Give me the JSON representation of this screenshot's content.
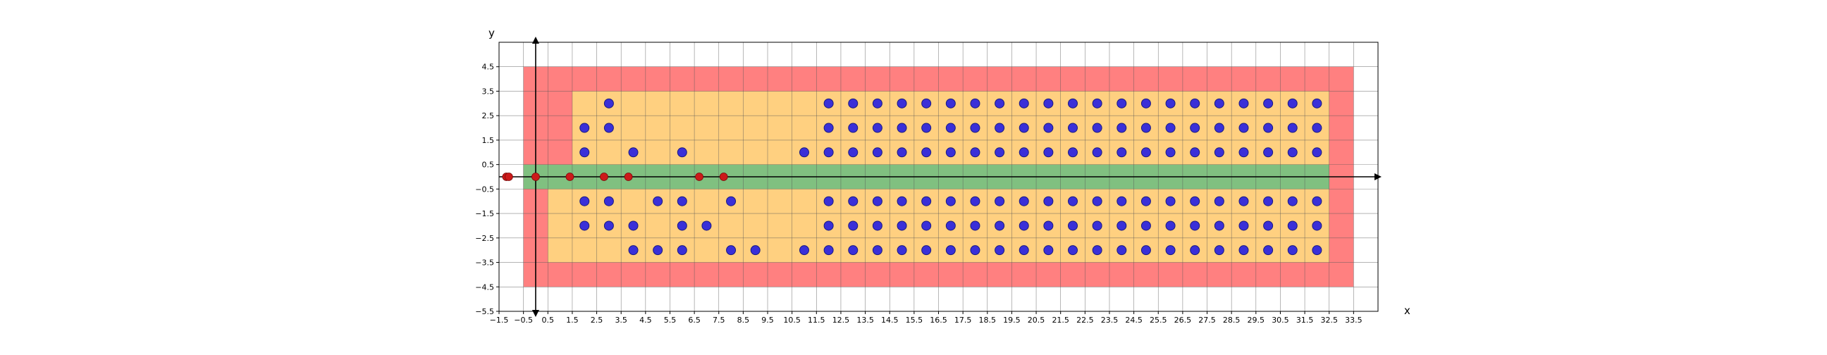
{
  "chart_data": {
    "type": "scatter",
    "xlabel": "x",
    "ylabel": "y",
    "xlim": [
      -1.5,
      34.5
    ],
    "ylim": [
      -5.5,
      5.5
    ],
    "grid": true,
    "x_ticks": [
      "−1.5",
      "−0.5",
      "0.5",
      "1.5",
      "2.5",
      "3.5",
      "4.5",
      "5.5",
      "6.5",
      "7.5",
      "8.5",
      "9.5",
      "10.5",
      "11.5",
      "12.5",
      "13.5",
      "14.5",
      "15.5",
      "16.5",
      "17.5",
      "18.5",
      "19.5",
      "20.5",
      "21.5",
      "22.5",
      "23.5",
      "24.5",
      "25.5",
      "26.5",
      "27.5",
      "28.5",
      "29.5",
      "30.5",
      "31.5",
      "32.5",
      "33.5"
    ],
    "y_ticks": [
      "4.5",
      "3.5",
      "2.5",
      "1.5",
      "0.5",
      "−0.5",
      "−1.5",
      "−2.5",
      "−3.5",
      "−4.5",
      "−5.5"
    ],
    "colors": {
      "outer_region": "#ff8080",
      "inner_region": "#ffd080",
      "center_band": "#80c080",
      "grid": "#555555",
      "blue_point_fill": "#3a2fd8",
      "blue_point_edge": "#1a1a80",
      "red_point": "#cc1a1a"
    },
    "regions": [
      {
        "name": "outer",
        "x": [
          -0.5,
          33.5
        ],
        "y": [
          -4.5,
          4.5
        ]
      },
      {
        "name": "inner-top",
        "x": [
          1.5,
          32.5
        ],
        "y": [
          0.5,
          3.5
        ]
      },
      {
        "name": "inner-bottom",
        "x": [
          0.5,
          32.5
        ],
        "y": [
          -3.5,
          -0.5
        ]
      },
      {
        "name": "center-band",
        "x": [
          -0.5,
          32.5
        ],
        "y": [
          -0.5,
          0.5
        ]
      }
    ],
    "series": [
      {
        "points": [
          [
            3,
            3
          ],
          [
            12,
            3
          ],
          [
            13,
            3
          ],
          [
            14,
            3
          ],
          [
            15,
            3
          ],
          [
            16,
            3
          ],
          [
            17,
            3
          ],
          [
            18,
            3
          ],
          [
            19,
            3
          ],
          [
            20,
            3
          ],
          [
            21,
            3
          ],
          [
            22,
            3
          ],
          [
            23,
            3
          ],
          [
            24,
            3
          ],
          [
            25,
            3
          ],
          [
            26,
            3
          ],
          [
            27,
            3
          ],
          [
            28,
            3
          ],
          [
            29,
            3
          ],
          [
            30,
            3
          ],
          [
            31,
            3
          ],
          [
            32,
            3
          ],
          [
            2,
            2
          ],
          [
            3,
            2
          ],
          [
            12,
            2
          ],
          [
            13,
            2
          ],
          [
            14,
            2
          ],
          [
            15,
            2
          ],
          [
            16,
            2
          ],
          [
            17,
            2
          ],
          [
            18,
            2
          ],
          [
            19,
            2
          ],
          [
            20,
            2
          ],
          [
            21,
            2
          ],
          [
            22,
            2
          ],
          [
            23,
            2
          ],
          [
            24,
            2
          ],
          [
            25,
            2
          ],
          [
            26,
            2
          ],
          [
            27,
            2
          ],
          [
            28,
            2
          ],
          [
            29,
            2
          ],
          [
            30,
            2
          ],
          [
            31,
            2
          ],
          [
            32,
            2
          ],
          [
            2,
            1
          ],
          [
            4,
            1
          ],
          [
            6,
            1
          ],
          [
            11,
            1
          ],
          [
            12,
            1
          ],
          [
            13,
            1
          ],
          [
            14,
            1
          ],
          [
            15,
            1
          ],
          [
            16,
            1
          ],
          [
            17,
            1
          ],
          [
            18,
            1
          ],
          [
            19,
            1
          ],
          [
            20,
            1
          ],
          [
            21,
            1
          ],
          [
            22,
            1
          ],
          [
            23,
            1
          ],
          [
            24,
            1
          ],
          [
            25,
            1
          ],
          [
            26,
            1
          ],
          [
            27,
            1
          ],
          [
            28,
            1
          ],
          [
            29,
            1
          ],
          [
            30,
            1
          ],
          [
            31,
            1
          ],
          [
            32,
            1
          ],
          [
            2,
            -1
          ],
          [
            3,
            -1
          ],
          [
            5,
            -1
          ],
          [
            6,
            -1
          ],
          [
            8,
            -1
          ],
          [
            12,
            -1
          ],
          [
            13,
            -1
          ],
          [
            14,
            -1
          ],
          [
            15,
            -1
          ],
          [
            16,
            -1
          ],
          [
            17,
            -1
          ],
          [
            18,
            -1
          ],
          [
            19,
            -1
          ],
          [
            20,
            -1
          ],
          [
            21,
            -1
          ],
          [
            22,
            -1
          ],
          [
            23,
            -1
          ],
          [
            24,
            -1
          ],
          [
            25,
            -1
          ],
          [
            26,
            -1
          ],
          [
            27,
            -1
          ],
          [
            28,
            -1
          ],
          [
            29,
            -1
          ],
          [
            30,
            -1
          ],
          [
            31,
            -1
          ],
          [
            32,
            -1
          ],
          [
            2,
            -2
          ],
          [
            3,
            -2
          ],
          [
            4,
            -2
          ],
          [
            6,
            -2
          ],
          [
            7,
            -2
          ],
          [
            12,
            -2
          ],
          [
            13,
            -2
          ],
          [
            14,
            -2
          ],
          [
            15,
            -2
          ],
          [
            16,
            -2
          ],
          [
            17,
            -2
          ],
          [
            18,
            -2
          ],
          [
            19,
            -2
          ],
          [
            20,
            -2
          ],
          [
            21,
            -2
          ],
          [
            22,
            -2
          ],
          [
            23,
            -2
          ],
          [
            24,
            -2
          ],
          [
            25,
            -2
          ],
          [
            26,
            -2
          ],
          [
            27,
            -2
          ],
          [
            28,
            -2
          ],
          [
            29,
            -2
          ],
          [
            30,
            -2
          ],
          [
            31,
            -2
          ],
          [
            32,
            -2
          ],
          [
            4,
            -3
          ],
          [
            5,
            -3
          ],
          [
            6,
            -3
          ],
          [
            8,
            -3
          ],
          [
            9,
            -3
          ],
          [
            11,
            -3
          ],
          [
            12,
            -3
          ],
          [
            13,
            -3
          ],
          [
            14,
            -3
          ],
          [
            15,
            -3
          ],
          [
            16,
            -3
          ],
          [
            17,
            -3
          ],
          [
            18,
            -3
          ],
          [
            19,
            -3
          ],
          [
            20,
            -3
          ],
          [
            21,
            -3
          ],
          [
            22,
            -3
          ],
          [
            23,
            -3
          ],
          [
            24,
            -3
          ],
          [
            25,
            -3
          ],
          [
            26,
            -3
          ],
          [
            27,
            -3
          ],
          [
            28,
            -3
          ],
          [
            29,
            -3
          ],
          [
            30,
            -3
          ],
          [
            31,
            -3
          ],
          [
            32,
            -3
          ]
        ]
      },
      {
        "points": [
          [
            -1.2,
            0
          ],
          [
            -1.1,
            0
          ],
          [
            0,
            0
          ],
          [
            1.4,
            0
          ],
          [
            2.8,
            0
          ],
          [
            3.8,
            0
          ],
          [
            6.7,
            0
          ],
          [
            7.7,
            0
          ]
        ]
      }
    ]
  }
}
